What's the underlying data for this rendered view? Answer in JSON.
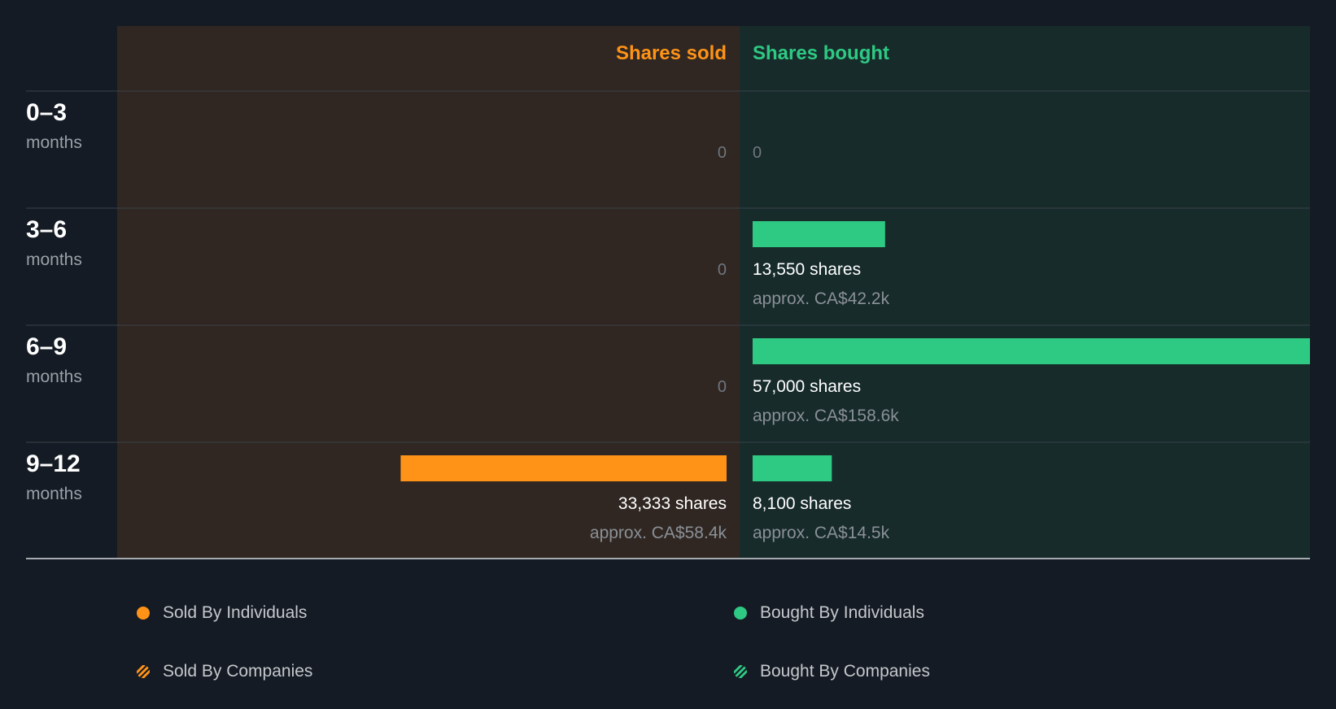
{
  "chart_data": {
    "type": "bar",
    "title": "",
    "headers": {
      "sold": "Shares sold",
      "bought": "Shares bought"
    },
    "categories": [
      {
        "range": "0–3",
        "unit": "months"
      },
      {
        "range": "3–6",
        "unit": "months"
      },
      {
        "range": "6–9",
        "unit": "months"
      },
      {
        "range": "9–12",
        "unit": "months"
      }
    ],
    "series": [
      {
        "name": "Shares sold",
        "values": [
          0,
          0,
          0,
          33333
        ],
        "labels": [
          "0",
          "0",
          "0",
          "33,333 shares"
        ],
        "approx": [
          "",
          "",
          "",
          "approx. CA$58.4k"
        ]
      },
      {
        "name": "Shares bought",
        "values": [
          0,
          13550,
          57000,
          8100
        ],
        "labels": [
          "0",
          "13,550 shares",
          "57,000 shares",
          "8,100 shares"
        ],
        "approx": [
          "",
          "approx. CA$42.2k",
          "approx. CA$158.6k",
          "approx. CA$14.5k"
        ]
      }
    ],
    "max_value": 57000,
    "colors": {
      "sold": "#ff9317",
      "bought": "#2ec983",
      "sold_bg": "#302722",
      "bought_bg": "#172b2b",
      "grid": "#3a4048",
      "axis": "#a6abb0"
    }
  },
  "legend": [
    {
      "label": "Sold By Individuals",
      "style": "solid",
      "color": "#ff9317"
    },
    {
      "label": "Bought By Individuals",
      "style": "solid",
      "color": "#2ec983"
    },
    {
      "label": "Sold By Companies",
      "style": "striped",
      "color": "#ff9317"
    },
    {
      "label": "Bought By Companies",
      "style": "striped",
      "color": "#2ec983"
    }
  ]
}
